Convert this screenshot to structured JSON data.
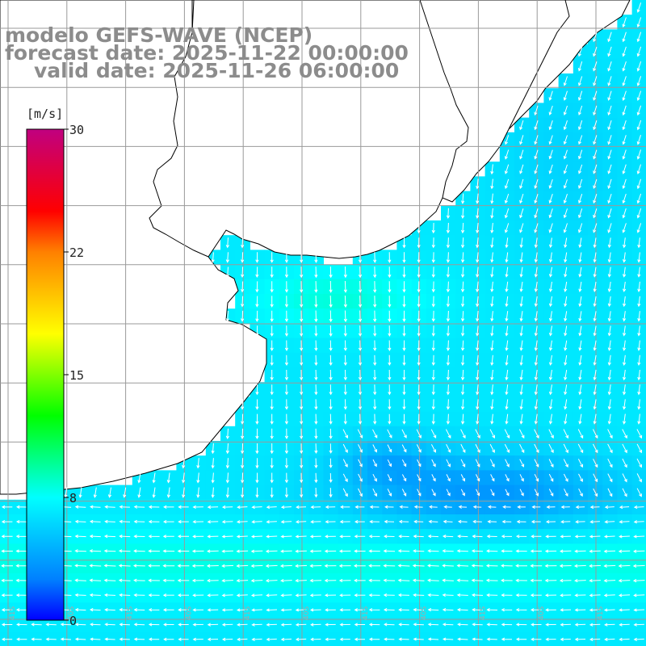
{
  "title": {
    "model": "modelo GEFS-WAVE (NCEP)",
    "forecast": "forecast date: 2025-11-22 00:00:00",
    "valid": "valid date: 2025-11-26 06:00:00"
  },
  "colorbar": {
    "unit": "[m/s]",
    "min": 0,
    "max": 30,
    "ticks": [
      {
        "value": 30,
        "label": "30"
      },
      {
        "value": 22.5,
        "label": "22"
      },
      {
        "value": 15,
        "label": "15"
      },
      {
        "value": 7.5,
        "label": "8"
      },
      {
        "value": 0,
        "label": "0"
      }
    ],
    "colors": [
      "#0000ff",
      "#0080ff",
      "#00c0ff",
      "#00ffff",
      "#00ff80",
      "#00ff00",
      "#80ff00",
      "#ffff00",
      "#ffc000",
      "#ff8000",
      "#ff0000",
      "#e00040",
      "#c00080"
    ]
  },
  "map": {
    "background": "#ffffff",
    "land_color": "#ffffff",
    "coast_color": "#000000",
    "grid_color": "#9a9a9a",
    "arrow_color": "#ffffff",
    "grid_labels": [
      "41S",
      "40S",
      "41S",
      "40S",
      "41S",
      "40S",
      "41S",
      "40S",
      "41S",
      "40S",
      "41S"
    ]
  }
}
